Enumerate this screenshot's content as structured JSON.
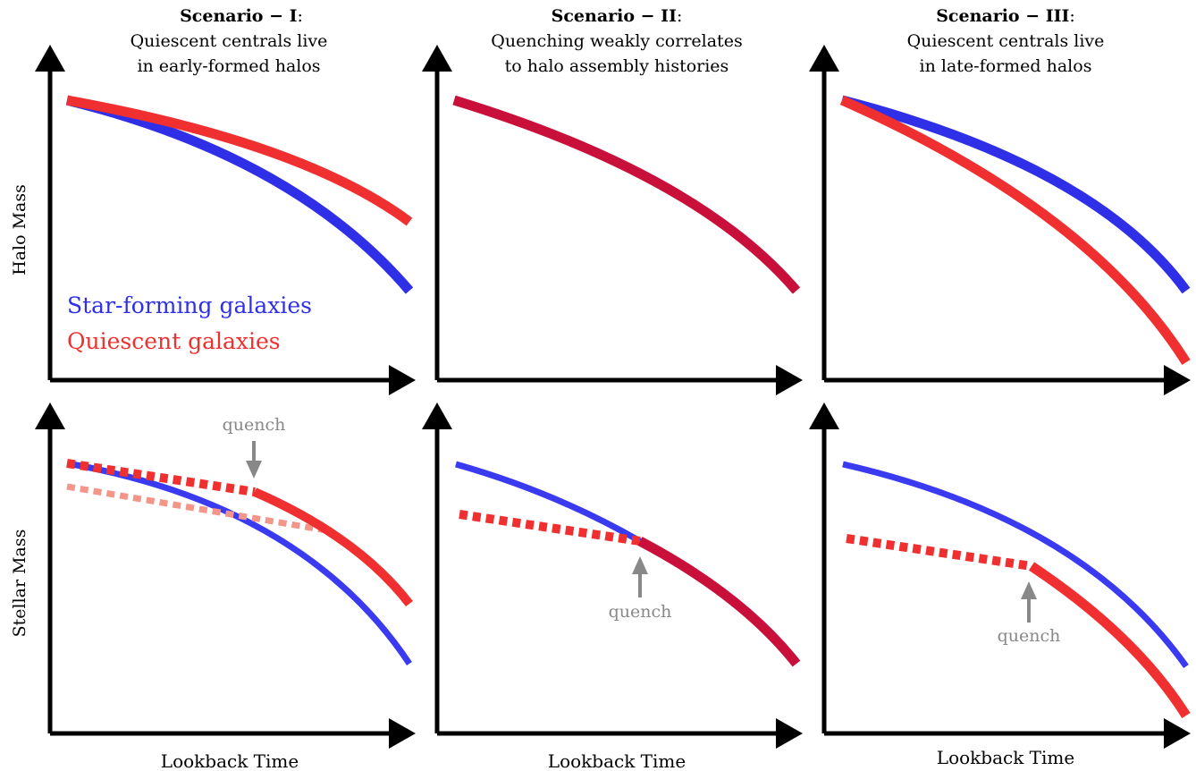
{
  "colors": {
    "star_forming": "#2f2fe8",
    "quiescent": "#f03030",
    "quiescent_faded": "#f4958a",
    "overlap": "#c8103a",
    "axis": "#000000",
    "annotation": "#888888"
  },
  "columns": [
    {
      "title_bold": "Scenario − I",
      "title_sep": ":",
      "subtitle_line1": "Quiescent centrals live",
      "subtitle_line2": "in early-formed halos"
    },
    {
      "title_bold": "Scenario − II",
      "title_sep": ":",
      "subtitle_line1": "Quenching weakly correlates",
      "subtitle_line2": "to halo assembly histories"
    },
    {
      "title_bold": "Scenario − III",
      "title_sep": ":",
      "subtitle_line1": "Quiescent centrals live",
      "subtitle_line2": "in late-formed halos"
    }
  ],
  "row_labels": {
    "top": "Halo Mass",
    "bottom": "Stellar Mass"
  },
  "x_label": "Lookback Time",
  "legend": {
    "star_forming": "Star-forming galaxies",
    "quiescent": "Quiescent galaxies"
  },
  "annotations": {
    "quench": "quench"
  }
}
